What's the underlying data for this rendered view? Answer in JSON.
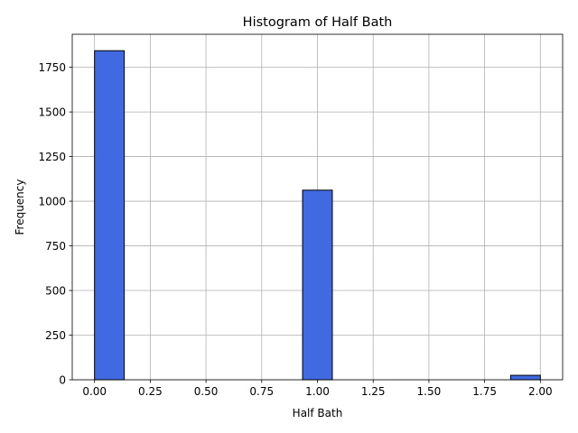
{
  "chart_data": {
    "type": "bar",
    "title": "Histogram of Half Bath",
    "xlabel": "Half Bath",
    "ylabel": "Frequency",
    "bins": [
      {
        "x0": 0.0,
        "x1": 0.1333,
        "count": 1843
      },
      {
        "x0": 0.1333,
        "x1": 0.2667,
        "count": 0
      },
      {
        "x0": 0.2667,
        "x1": 0.4,
        "count": 0
      },
      {
        "x0": 0.4,
        "x1": 0.5333,
        "count": 0
      },
      {
        "x0": 0.5333,
        "x1": 0.6667,
        "count": 0
      },
      {
        "x0": 0.6667,
        "x1": 0.8,
        "count": 0
      },
      {
        "x0": 0.8,
        "x1": 0.9333,
        "count": 0
      },
      {
        "x0": 0.9333,
        "x1": 1.0667,
        "count": 1062
      },
      {
        "x0": 1.0667,
        "x1": 1.2,
        "count": 0
      },
      {
        "x0": 1.2,
        "x1": 1.3333,
        "count": 0
      },
      {
        "x0": 1.3333,
        "x1": 1.4667,
        "count": 0
      },
      {
        "x0": 1.4667,
        "x1": 1.6,
        "count": 0
      },
      {
        "x0": 1.6,
        "x1": 1.7333,
        "count": 0
      },
      {
        "x0": 1.7333,
        "x1": 1.8667,
        "count": 0
      },
      {
        "x0": 1.8667,
        "x1": 2.0,
        "count": 25
      }
    ],
    "xlim": [
      -0.1,
      2.1
    ],
    "ylim": [
      0,
      1935
    ],
    "xticks": [
      0.0,
      0.25,
      0.5,
      0.75,
      1.0,
      1.25,
      1.5,
      1.75,
      2.0
    ],
    "xtick_labels": [
      "0.00",
      "0.25",
      "0.50",
      "0.75",
      "1.00",
      "1.25",
      "1.50",
      "1.75",
      "2.00"
    ],
    "yticks": [
      0,
      250,
      500,
      750,
      1000,
      1250,
      1500,
      1750
    ],
    "ytick_labels": [
      "0",
      "250",
      "500",
      "750",
      "1000",
      "1250",
      "1500",
      "1750"
    ],
    "grid": true,
    "colors": {
      "bar_fill": "#4169e1",
      "bar_edge": "#000000",
      "grid": "#b0b0b0"
    }
  }
}
